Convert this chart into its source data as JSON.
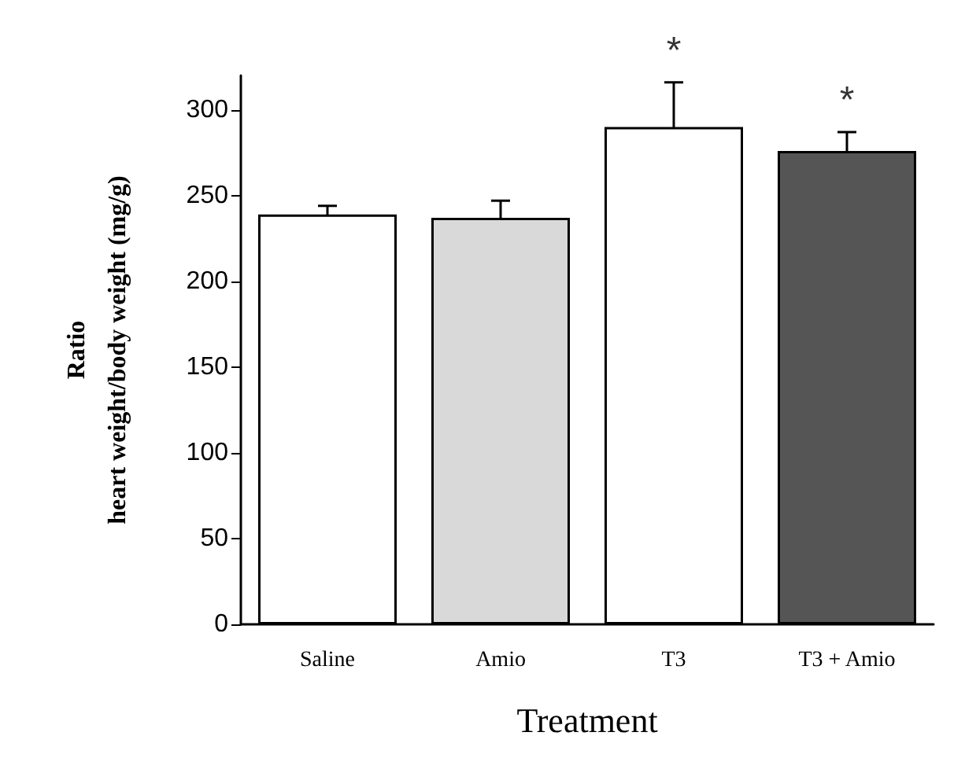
{
  "chart_data": {
    "type": "bar",
    "xlabel": "Treatment",
    "ylabel": "Ratio\nheart weight/body weight (mg/g)",
    "categories": [
      "Saline",
      "Amio",
      "T3",
      "T3 + Amio"
    ],
    "values": [
      239,
      237,
      290,
      276
    ],
    "errors": [
      5,
      10,
      26,
      11
    ],
    "colors": [
      "#ffffff",
      "#d9d9d9",
      "#ffffff",
      "#555555"
    ],
    "ylim": [
      0,
      320
    ],
    "yticks": [
      0,
      50,
      100,
      150,
      200,
      250,
      300
    ],
    "grid": false,
    "annotations": [
      {
        "text": "*",
        "x": "T3",
        "y": 316
      },
      {
        "text": "*",
        "x": "T3 + Amio",
        "y": 287
      }
    ]
  }
}
